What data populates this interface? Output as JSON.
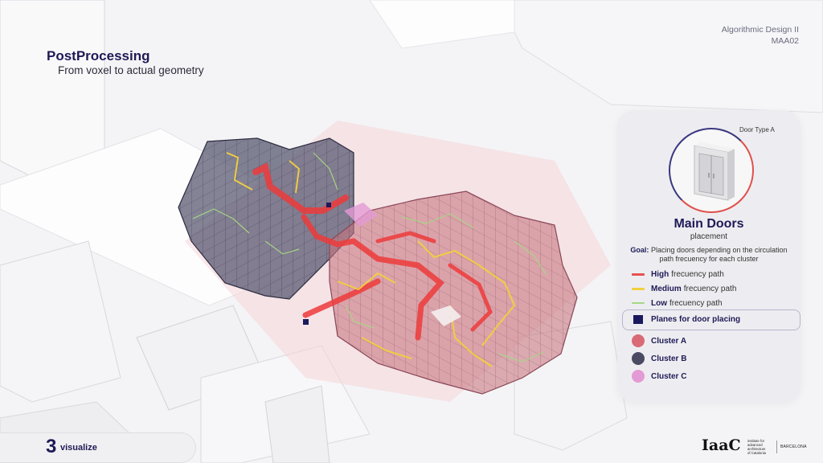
{
  "header": {
    "course": "Algorithmic Design II",
    "course_code": "MAA02"
  },
  "slide": {
    "title": "PostProcessing",
    "subtitle": "From voxel to actual geometry"
  },
  "panel": {
    "door_type_label": "Door Type A",
    "title": "Main Doors",
    "subtitle": "placement",
    "goal_label": "Goal:",
    "goal_text": " Placing doors depending on the circulation path frecuency for each cluster",
    "legend": [
      {
        "strong": "High",
        "text": "frecuency path",
        "color": "#e8504e"
      },
      {
        "strong": "Medium",
        "text": "frecuency path",
        "color": "#f2d03e"
      },
      {
        "strong": "Low",
        "text": "frecuency path",
        "color": "#a6d784"
      }
    ],
    "planes_label": "Planes for door placing",
    "planes_color": "#1b1a5e",
    "clusters": [
      {
        "label": "Cluster A",
        "color": "#d96a76"
      },
      {
        "label": "Cluster B",
        "color": "#4a4a63"
      },
      {
        "label": "Cluster C",
        "color": "#e49ad4"
      }
    ]
  },
  "footer": {
    "step_number": "3",
    "step_label": "visualize",
    "logo_mark": "IaaC",
    "logo_lines": [
      "institute for",
      "advanced",
      "architecture",
      "of Catalonia"
    ],
    "logo_city": "BARCELONA"
  }
}
